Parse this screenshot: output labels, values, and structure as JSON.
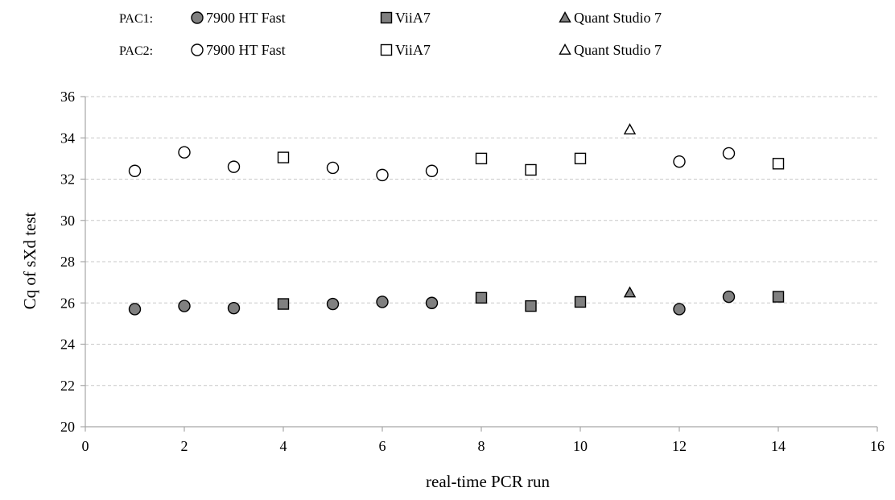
{
  "chart_data": {
    "type": "scatter",
    "xlabel": "real-time PCR run",
    "ylabel": "Cq of sXd test",
    "xlim": [
      0,
      16
    ],
    "ylim": [
      20,
      36
    ],
    "x_ticks": [
      0,
      2,
      4,
      6,
      8,
      10,
      12,
      14,
      16
    ],
    "y_ticks": [
      20,
      22,
      24,
      26,
      28,
      30,
      32,
      34,
      36
    ],
    "grid": "horizontal-dashed",
    "legend_groups": [
      {
        "label": "PAC1:",
        "entries": [
          {
            "series": 0,
            "label": "7900 HT Fast"
          },
          {
            "series": 1,
            "label": "ViiA7"
          },
          {
            "series": 2,
            "label": "Quant Studio 7"
          }
        ]
      },
      {
        "label": "PAC2:",
        "entries": [
          {
            "series": 3,
            "label": "7900 HT Fast"
          },
          {
            "series": 4,
            "label": "ViiA7"
          },
          {
            "series": 5,
            "label": "Quant Studio 7"
          }
        ]
      }
    ],
    "series": [
      {
        "name": "7900 HT Fast",
        "marker": "circle",
        "fill": "#808080",
        "points": [
          [
            1,
            25.7
          ],
          [
            2,
            25.85
          ],
          [
            3,
            25.75
          ],
          [
            5,
            25.95
          ],
          [
            6,
            26.05
          ],
          [
            7,
            26.0
          ],
          [
            12,
            25.7
          ],
          [
            13,
            26.3
          ]
        ]
      },
      {
        "name": "ViiA7",
        "marker": "square",
        "fill": "#808080",
        "points": [
          [
            4,
            25.95
          ],
          [
            8,
            26.25
          ],
          [
            9,
            25.85
          ],
          [
            10,
            26.05
          ],
          [
            14,
            26.3
          ]
        ]
      },
      {
        "name": "Quant Studio 7",
        "marker": "triangle",
        "fill": "#808080",
        "points": [
          [
            11,
            26.5
          ]
        ]
      },
      {
        "name": "7900 HT Fast",
        "marker": "circle",
        "fill": "#ffffff",
        "points": [
          [
            1,
            32.4
          ],
          [
            2,
            33.3
          ],
          [
            3,
            32.6
          ],
          [
            5,
            32.55
          ],
          [
            6,
            32.2
          ],
          [
            7,
            32.4
          ],
          [
            12,
            32.85
          ],
          [
            13,
            33.25
          ]
        ]
      },
      {
        "name": "ViiA7",
        "marker": "square",
        "fill": "#ffffff",
        "points": [
          [
            4,
            33.05
          ],
          [
            8,
            33.0
          ],
          [
            9,
            32.45
          ],
          [
            10,
            33.0
          ],
          [
            14,
            32.75
          ]
        ]
      },
      {
        "name": "Quant Studio 7",
        "marker": "triangle",
        "fill": "#ffffff",
        "points": [
          [
            11,
            34.4
          ]
        ]
      }
    ]
  }
}
